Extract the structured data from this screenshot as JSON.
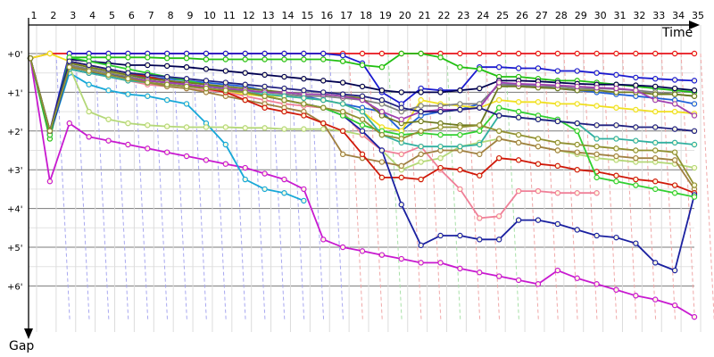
{
  "chart_data": {
    "type": "line",
    "xlabel": "Time",
    "ylabel": "Gap",
    "laps": [
      "1",
      "2",
      "3",
      "4",
      "5",
      "6",
      "7",
      "8",
      "9",
      "10",
      "11",
      "12",
      "13",
      "14",
      "15",
      "16",
      "17",
      "18",
      "19",
      "20",
      "21",
      "22",
      "23",
      "24",
      "25",
      "26",
      "27",
      "28",
      "29",
      "30",
      "31",
      "32",
      "33",
      "34",
      "35"
    ],
    "gap_ticks": [
      "+0'",
      "+1'",
      "+2'",
      "+3'",
      "+4'",
      "+5'",
      "+6'"
    ],
    "ylim": [
      0,
      7
    ],
    "series": [
      {
        "color": "#e8141b",
        "values": [
          0.12,
          0.0,
          0.0,
          0.0,
          0.0,
          0.0,
          0.0,
          0.0,
          0.0,
          0.0,
          0.0,
          0.0,
          0.0,
          0.0,
          0.0,
          0.0,
          0.0,
          0.0,
          0.0,
          0.0,
          0.0,
          0.0,
          0.0,
          0.0,
          0.0,
          0.0,
          0.0,
          0.0,
          0.0,
          0.0,
          0.0,
          0.0,
          0.0,
          0.0,
          0.0
        ]
      },
      {
        "color": "#1a1ad0",
        "values": [
          0.12,
          2.0,
          0.0,
          0.0,
          0.0,
          0.0,
          0.0,
          0.0,
          0.0,
          0.0,
          0.0,
          0.0,
          0.0,
          0.0,
          0.0,
          0.0,
          0.05,
          0.25,
          1.0,
          1.3,
          0.9,
          0.95,
          0.95,
          0.35,
          0.35,
          0.38,
          0.38,
          0.45,
          0.45,
          0.5,
          0.55,
          0.62,
          0.65,
          0.68,
          0.7
        ]
      },
      {
        "color": "#22c012",
        "values": [
          0.12,
          2.2,
          0.1,
          0.1,
          0.1,
          0.1,
          0.1,
          0.12,
          0.12,
          0.15,
          0.15,
          0.15,
          0.15,
          0.15,
          0.15,
          0.15,
          0.2,
          0.3,
          0.35,
          0.0,
          0.0,
          0.1,
          0.35,
          0.4,
          0.6,
          0.6,
          0.65,
          0.7,
          0.7,
          0.75,
          0.8,
          0.85,
          0.9,
          0.95,
          1.0
        ]
      },
      {
        "color": "#000050",
        "values": [
          0.12,
          2.0,
          0.15,
          0.2,
          0.25,
          0.3,
          0.3,
          0.32,
          0.35,
          0.4,
          0.45,
          0.5,
          0.55,
          0.6,
          0.65,
          0.7,
          0.75,
          0.85,
          0.95,
          1.0,
          1.0,
          1.0,
          0.95,
          0.9,
          0.7,
          0.7,
          0.72,
          0.75,
          0.78,
          0.8,
          0.8,
          0.82,
          0.85,
          0.9,
          0.95
        ]
      },
      {
        "color": "#2060d8",
        "values": [
          0.12,
          2.05,
          0.3,
          0.4,
          0.5,
          0.55,
          0.6,
          0.65,
          0.7,
          0.75,
          0.8,
          0.85,
          0.95,
          1.05,
          1.1,
          1.2,
          1.3,
          1.4,
          1.5,
          2.0,
          1.6,
          1.5,
          1.45,
          1.3,
          0.8,
          0.8,
          0.85,
          0.9,
          0.95,
          1.0,
          1.05,
          1.1,
          1.15,
          1.2,
          1.3
        ]
      },
      {
        "color": "#c81ad0",
        "values": [
          0.12,
          3.3,
          1.8,
          2.15,
          2.25,
          2.35,
          2.45,
          2.55,
          2.65,
          2.75,
          2.85,
          2.95,
          3.1,
          3.25,
          3.5,
          4.8,
          5.0,
          5.1,
          5.2,
          5.3,
          5.4,
          5.4,
          5.55,
          5.65,
          5.75,
          5.85,
          5.95,
          5.6,
          5.8,
          5.95,
          6.1,
          6.25,
          6.35,
          6.5,
          6.8
        ]
      },
      {
        "color": "#18a8d8",
        "values": [
          0.12,
          2.1,
          0.5,
          0.8,
          0.95,
          1.05,
          1.1,
          1.2,
          1.3,
          1.8,
          2.35,
          3.25,
          3.5,
          3.6,
          3.8,
          null,
          null,
          null,
          null,
          null,
          null,
          null,
          null,
          null,
          null,
          null,
          null,
          null,
          null,
          null,
          null,
          null,
          null,
          null,
          null
        ]
      },
      {
        "color": "#b4d878",
        "values": [
          0.12,
          2.1,
          0.35,
          1.5,
          1.7,
          1.8,
          1.85,
          1.88,
          1.9,
          1.9,
          1.9,
          1.92,
          1.92,
          1.95,
          1.95,
          1.95,
          2.0,
          2.1,
          2.5,
          3.0,
          2.8,
          2.7,
          2.4,
          2.3,
          2.2,
          2.3,
          2.4,
          2.5,
          2.6,
          2.7,
          2.75,
          2.8,
          2.8,
          2.85,
          2.95
        ]
      },
      {
        "color": "#f0e020",
        "values": [
          0.12,
          0.0,
          0.2,
          0.35,
          0.45,
          0.6,
          0.7,
          0.75,
          0.8,
          0.9,
          1.0,
          1.05,
          1.1,
          1.1,
          1.15,
          1.2,
          1.3,
          1.5,
          1.9,
          2.0,
          1.2,
          1.3,
          1.35,
          1.4,
          1.2,
          1.25,
          1.25,
          1.3,
          1.3,
          1.35,
          1.4,
          1.45,
          1.5,
          1.5,
          1.55
        ]
      },
      {
        "color": "#f08098",
        "values": [
          0.12,
          2.0,
          0.4,
          0.5,
          0.6,
          0.7,
          0.8,
          0.85,
          0.9,
          0.95,
          1.0,
          1.1,
          1.2,
          1.3,
          1.35,
          1.4,
          1.5,
          2.1,
          2.5,
          2.6,
          2.4,
          3.0,
          3.5,
          4.25,
          4.2,
          3.55,
          3.55,
          3.6,
          3.6,
          3.6,
          null,
          null,
          null,
          null,
          null
        ]
      },
      {
        "color": "#a08040",
        "values": [
          0.12,
          2.0,
          0.3,
          0.45,
          0.55,
          0.65,
          0.75,
          0.85,
          0.9,
          1.0,
          1.1,
          1.2,
          1.3,
          1.4,
          1.5,
          1.8,
          2.6,
          2.7,
          2.8,
          2.9,
          2.6,
          2.5,
          2.5,
          2.6,
          2.2,
          2.3,
          2.4,
          2.5,
          2.55,
          2.6,
          2.65,
          2.7,
          2.7,
          2.75,
          3.5
        ]
      },
      {
        "color": "#d01808",
        "values": [
          0.12,
          2.0,
          0.2,
          0.3,
          0.4,
          0.5,
          0.6,
          0.7,
          0.8,
          0.9,
          1.0,
          1.2,
          1.4,
          1.5,
          1.6,
          1.8,
          2.0,
          2.6,
          3.2,
          3.2,
          3.25,
          2.95,
          3.0,
          3.15,
          2.7,
          2.75,
          2.85,
          2.9,
          3.0,
          3.05,
          3.15,
          3.25,
          3.3,
          3.4,
          3.6
        ]
      },
      {
        "color": "#1a20a0",
        "values": [
          0.12,
          2.1,
          0.4,
          0.5,
          0.55,
          0.6,
          0.7,
          0.75,
          0.8,
          0.85,
          0.9,
          1.0,
          1.1,
          1.2,
          1.3,
          1.4,
          1.6,
          2.0,
          2.5,
          3.9,
          4.95,
          4.7,
          4.7,
          4.8,
          4.8,
          4.3,
          4.3,
          4.4,
          4.55,
          4.7,
          4.75,
          4.9,
          5.4,
          5.6,
          3.65
        ]
      },
      {
        "color": "#30d030",
        "values": [
          0.12,
          2.1,
          0.1,
          0.2,
          0.3,
          0.4,
          0.5,
          0.6,
          0.7,
          0.8,
          0.9,
          1.0,
          1.1,
          1.2,
          1.3,
          1.4,
          1.6,
          1.85,
          2.0,
          2.1,
          2.05,
          2.1,
          2.1,
          2.0,
          1.4,
          1.5,
          1.6,
          1.7,
          2.0,
          3.2,
          3.3,
          3.4,
          3.5,
          3.6,
          3.7
        ]
      },
      {
        "color": "#808080",
        "values": [
          0.12,
          2.0,
          0.3,
          0.4,
          0.5,
          0.6,
          0.7,
          0.75,
          0.8,
          0.85,
          0.9,
          0.95,
          1.0,
          1.05,
          1.1,
          1.1,
          1.15,
          1.2,
          1.3,
          1.5,
          1.35,
          1.35,
          1.3,
          1.3,
          0.8,
          0.82,
          0.85,
          0.85,
          0.9,
          0.9,
          0.92,
          0.95,
          1.0,
          1.05,
          1.1
        ]
      },
      {
        "color": "#6e7a20",
        "values": [
          0.12,
          2.0,
          0.25,
          0.35,
          0.45,
          0.55,
          0.65,
          0.7,
          0.75,
          0.8,
          0.85,
          0.9,
          0.95,
          1.0,
          1.05,
          1.05,
          1.1,
          1.15,
          1.6,
          1.8,
          1.75,
          1.8,
          1.85,
          1.85,
          0.85,
          0.85,
          0.88,
          0.9,
          0.95,
          0.95,
          1.0,
          1.0,
          1.05,
          1.05,
          1.1
        ]
      },
      {
        "color": "#a040b0",
        "values": [
          0.12,
          2.0,
          0.35,
          0.45,
          0.55,
          0.65,
          0.7,
          0.75,
          0.8,
          0.85,
          0.9,
          0.95,
          1.0,
          1.0,
          1.05,
          1.05,
          1.1,
          1.2,
          1.5,
          1.7,
          1.5,
          1.45,
          1.45,
          1.4,
          0.75,
          0.78,
          0.8,
          0.82,
          0.85,
          0.88,
          0.9,
          0.95,
          1.2,
          1.3,
          1.6
        ]
      },
      {
        "color": "#30b0a0",
        "values": [
          0.12,
          2.0,
          0.4,
          0.5,
          0.6,
          0.7,
          0.75,
          0.8,
          0.85,
          0.9,
          0.95,
          1.0,
          1.05,
          1.1,
          1.15,
          1.2,
          1.3,
          1.5,
          2.1,
          2.3,
          2.4,
          2.4,
          2.4,
          2.35,
          1.6,
          1.65,
          1.7,
          1.75,
          1.8,
          2.2,
          2.2,
          2.25,
          2.3,
          2.3,
          2.35
        ]
      },
      {
        "color": "#202080",
        "values": [
          0.12,
          2.0,
          0.2,
          0.3,
          0.4,
          0.5,
          0.55,
          0.6,
          0.65,
          0.7,
          0.75,
          0.8,
          0.85,
          0.9,
          0.95,
          1.0,
          1.05,
          1.1,
          1.2,
          1.4,
          1.5,
          1.5,
          1.45,
          1.4,
          1.6,
          1.65,
          1.7,
          1.75,
          1.8,
          1.85,
          1.85,
          1.9,
          1.9,
          1.95,
          2.0
        ]
      },
      {
        "color": "#909030",
        "values": [
          0.12,
          2.0,
          0.35,
          0.45,
          0.55,
          0.65,
          0.75,
          0.8,
          0.85,
          0.9,
          0.95,
          1.0,
          1.1,
          1.2,
          1.3,
          1.4,
          1.5,
          1.7,
          2.1,
          2.2,
          2.0,
          1.9,
          1.9,
          1.85,
          2.0,
          2.1,
          2.2,
          2.3,
          2.35,
          2.4,
          2.45,
          2.5,
          2.5,
          2.55,
          3.4
        ]
      }
    ]
  }
}
